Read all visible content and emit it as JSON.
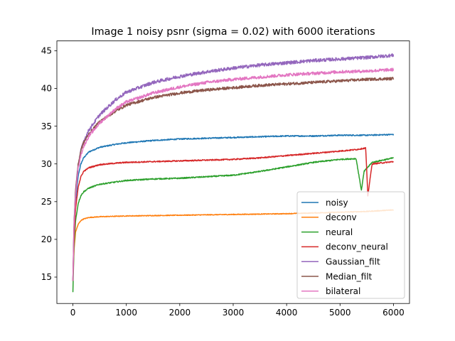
{
  "chart_data": {
    "type": "line",
    "title": "Image 1 noisy psnr (sigma = 0.02) with 6000 iterations",
    "xlabel": "",
    "ylabel": "",
    "xlim": [
      -300,
      6300
    ],
    "ylim": [
      11.5,
      46.3
    ],
    "xticks": [
      0,
      1000,
      2000,
      3000,
      4000,
      5000,
      6000
    ],
    "yticks": [
      15,
      20,
      25,
      30,
      35,
      40,
      45
    ],
    "grid": false,
    "legend_position": "lower-right",
    "series": [
      {
        "name": "noisy",
        "color": "#1f77b4",
        "x": [
          0,
          20,
          50,
          100,
          150,
          200,
          300,
          500,
          800,
          1000,
          1500,
          2000,
          2500,
          3000,
          3500,
          4000,
          4500,
          5000,
          5500,
          6000
        ],
        "y": [
          14.5,
          20.5,
          25.0,
          28.5,
          30.0,
          30.8,
          31.6,
          32.2,
          32.6,
          32.8,
          33.1,
          33.3,
          33.4,
          33.5,
          33.6,
          33.7,
          33.7,
          33.8,
          33.8,
          33.9
        ]
      },
      {
        "name": "deconv",
        "color": "#ff7f0e",
        "x": [
          0,
          20,
          50,
          100,
          150,
          200,
          300,
          500,
          1000,
          2000,
          3000,
          4000,
          5000,
          5500,
          6000
        ],
        "y": [
          14.5,
          18.5,
          21.0,
          22.0,
          22.5,
          22.7,
          22.9,
          23.0,
          23.1,
          23.2,
          23.3,
          23.4,
          23.6,
          23.7,
          23.9
        ]
      },
      {
        "name": "neural",
        "color": "#2ca02c",
        "x": [
          0,
          20,
          50,
          100,
          150,
          200,
          300,
          500,
          800,
          1000,
          1500,
          2000,
          2500,
          3000,
          3500,
          4000,
          4500,
          5000,
          5300,
          5400,
          5450,
          5600,
          6000
        ],
        "y": [
          13.0,
          19.0,
          22.5,
          24.8,
          25.8,
          26.3,
          26.8,
          27.3,
          27.6,
          27.8,
          28.0,
          28.1,
          28.3,
          28.5,
          29.0,
          29.6,
          30.2,
          30.6,
          30.7,
          26.5,
          29.0,
          30.2,
          30.8
        ]
      },
      {
        "name": "deconv_neural",
        "color": "#d62728",
        "x": [
          0,
          20,
          50,
          100,
          150,
          200,
          300,
          500,
          800,
          1000,
          1500,
          2000,
          2500,
          3000,
          3500,
          4000,
          4500,
          5000,
          5300,
          5480,
          5520,
          5600,
          6000
        ],
        "y": [
          14.5,
          20.0,
          24.0,
          27.0,
          28.3,
          29.0,
          29.5,
          29.9,
          30.1,
          30.2,
          30.3,
          30.4,
          30.5,
          30.6,
          30.8,
          31.1,
          31.4,
          31.7,
          31.9,
          32.1,
          25.8,
          30.0,
          30.3
        ]
      },
      {
        "name": "Gaussian_filt",
        "color": "#9467bd",
        "x": [
          0,
          20,
          50,
          100,
          150,
          200,
          300,
          500,
          800,
          1000,
          1500,
          2000,
          2500,
          3000,
          3500,
          4000,
          4500,
          5000,
          5500,
          6000
        ],
        "y": [
          14.5,
          22.0,
          26.5,
          30.0,
          31.8,
          33.0,
          34.5,
          36.5,
          38.5,
          39.5,
          40.8,
          41.6,
          42.2,
          42.7,
          43.1,
          43.4,
          43.7,
          43.9,
          44.1,
          44.4
        ]
      },
      {
        "name": "Median_filt",
        "color": "#8c564b",
        "x": [
          0,
          20,
          50,
          100,
          150,
          200,
          300,
          500,
          800,
          1000,
          1500,
          2000,
          2500,
          3000,
          3500,
          4000,
          4500,
          5000,
          5500,
          6000
        ],
        "y": [
          14.5,
          22.0,
          26.5,
          30.0,
          31.8,
          32.8,
          34.0,
          35.6,
          37.0,
          37.8,
          38.8,
          39.4,
          39.8,
          40.1,
          40.4,
          40.6,
          40.8,
          41.0,
          41.2,
          41.3
        ]
      },
      {
        "name": "bilateral",
        "color": "#e377c2",
        "x": [
          0,
          20,
          50,
          100,
          150,
          200,
          300,
          500,
          800,
          1000,
          1500,
          2000,
          2500,
          3000,
          3500,
          4000,
          4500,
          5000,
          5500,
          6000
        ],
        "y": [
          14.5,
          21.5,
          26.0,
          29.5,
          31.2,
          32.3,
          33.7,
          35.4,
          37.3,
          38.2,
          39.4,
          40.2,
          40.8,
          41.2,
          41.5,
          41.8,
          42.0,
          42.2,
          42.3,
          42.5
        ]
      }
    ]
  }
}
